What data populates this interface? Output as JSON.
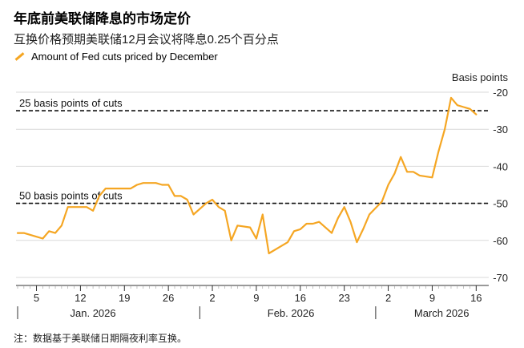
{
  "header": {
    "title": "年底前美联储降息的市场定价",
    "subtitle": "互换价格预期美联储12月会议将降息0.25个百分点"
  },
  "legend": {
    "label": "Amount of Fed cuts priced by December"
  },
  "footer": {
    "note": "注：数据基于美联储日期隔夜利率互换。"
  },
  "chart_data": {
    "type": "line",
    "title": "年底前美联储降息的市场定价",
    "subtitle": "互换价格预期美联储12月会议将降息0.25个百分点",
    "ylabel": "Basis points",
    "ylim": [
      -70,
      -20
    ],
    "yticks": [
      -20,
      -30,
      -40,
      -50,
      -60,
      -70
    ],
    "xlim": [
      0,
      75
    ],
    "xticks": [
      {
        "day": 3,
        "label": "5"
      },
      {
        "day": 10,
        "label": "12"
      },
      {
        "day": 17,
        "label": "19"
      },
      {
        "day": 24,
        "label": "26"
      },
      {
        "day": 31,
        "label": "2"
      },
      {
        "day": 38,
        "label": "9"
      },
      {
        "day": 45,
        "label": "16"
      },
      {
        "day": 52,
        "label": "23"
      },
      {
        "day": 59,
        "label": "2"
      },
      {
        "day": 66,
        "label": "9"
      },
      {
        "day": 73,
        "label": "16"
      }
    ],
    "months": [
      {
        "label": "Jan. 2026",
        "day": 12
      },
      {
        "label": "Feb. 2026",
        "day": 43.5
      },
      {
        "label": "March 2026",
        "day": 67.5
      }
    ],
    "month_separators": [
      0,
      29,
      57
    ],
    "reference_lines": [
      {
        "value": -25,
        "label": "25 basis points of cuts"
      },
      {
        "value": -50,
        "label": "50 basis points of cuts"
      }
    ],
    "series": [
      {
        "name": "Amount of Fed cuts priced by December",
        "color": "#f5a623",
        "x": [
          0,
          1,
          3,
          4,
          5,
          6,
          7,
          8,
          9,
          10,
          11,
          12,
          13,
          14,
          15,
          16,
          17,
          18,
          19,
          20,
          21,
          22,
          23,
          24,
          25,
          26,
          27,
          28,
          30,
          31,
          32,
          33,
          34,
          35,
          37,
          38,
          39,
          40,
          42,
          43,
          44,
          45,
          46,
          47,
          48,
          50,
          51,
          52,
          53,
          54,
          55,
          56,
          58,
          59,
          60,
          61,
          62,
          63,
          64,
          66,
          67,
          68,
          69,
          70,
          71,
          72,
          73
        ],
        "values": [
          -58,
          -58,
          -59,
          -59.5,
          -57.5,
          -58,
          -56,
          -51,
          -51,
          -51,
          -51,
          -52,
          -48,
          -46,
          -46,
          -46,
          -46,
          -46,
          -45,
          -44.5,
          -44.5,
          -44.5,
          -45,
          -45,
          -48,
          -48,
          -49,
          -53,
          -50,
          -49,
          -51,
          -52,
          -60,
          -56,
          -56.5,
          -59.5,
          -53,
          -63.5,
          -61.5,
          -60.5,
          -57.5,
          -57,
          -55.5,
          -55.5,
          -55,
          -58,
          -54,
          -51,
          -55,
          -60.5,
          -57,
          -53,
          -49.5,
          -45,
          -42,
          -37.5,
          -41.5,
          -41.5,
          -42.5,
          -43,
          -36,
          -30,
          -21.5,
          -23.5,
          -24,
          -24.5,
          -26
        ]
      }
    ]
  }
}
